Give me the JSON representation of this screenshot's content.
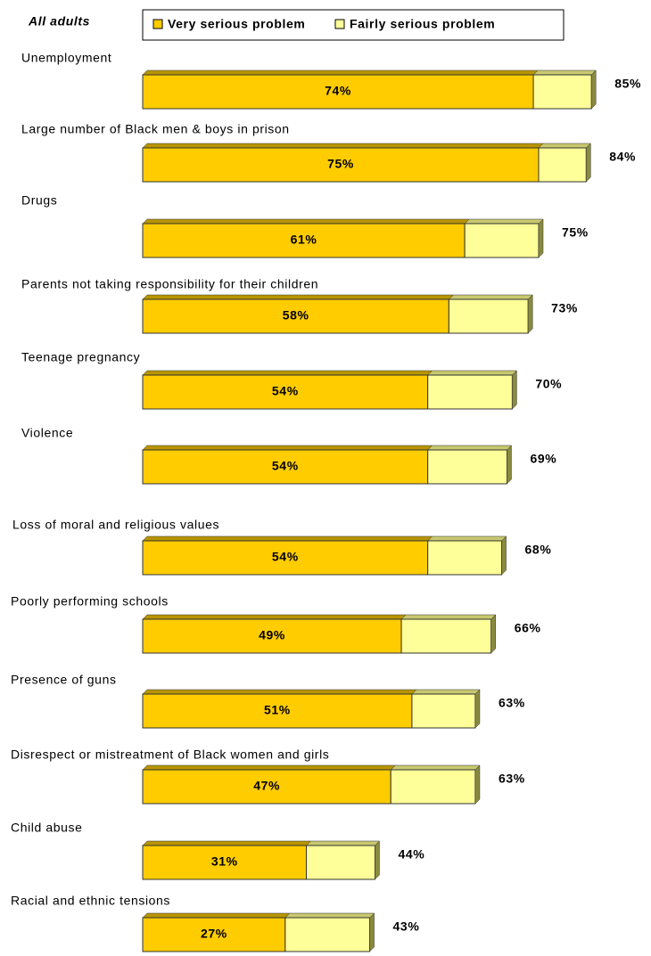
{
  "chart_data": {
    "type": "stacked-bar",
    "title": "All adults",
    "categories": [
      "Unemployment",
      "Large number of Black men & boys in prison",
      "Drugs",
      "Parents not taking responsibility for their children",
      "Teenage pregnancy",
      "Violence",
      "Loss of moral and religious values",
      "Poorly performing schools",
      "Presence of guns",
      "Disrespect or mistreatment of Black women and girls",
      "Child abuse",
      "Racial and ethnic tensions"
    ],
    "series": [
      {
        "name": "Very serious problem",
        "color": "#ffcc00",
        "values": [
          74,
          75,
          61,
          58,
          54,
          54,
          54,
          49,
          51,
          47,
          31,
          27
        ],
        "value_labels": [
          "74%",
          "75%",
          "61%",
          "58%",
          "54%",
          "54%",
          "54%",
          "49%",
          "51%",
          "47%",
          "31%",
          "27%"
        ]
      },
      {
        "name": "Fairly serious problem",
        "color": "#ffff99",
        "values": [
          11,
          9,
          14,
          15,
          16,
          15,
          14,
          17,
          12,
          16,
          13,
          16
        ]
      }
    ],
    "totals": [
      85,
      84,
      75,
      73,
      70,
      69,
      68,
      66,
      63,
      63,
      44,
      43
    ],
    "total_labels": [
      "85%",
      "84%",
      "75%",
      "73%",
      "70%",
      "69%",
      "68%",
      "66%",
      "63%",
      "63%",
      "44%",
      "43%"
    ]
  }
}
